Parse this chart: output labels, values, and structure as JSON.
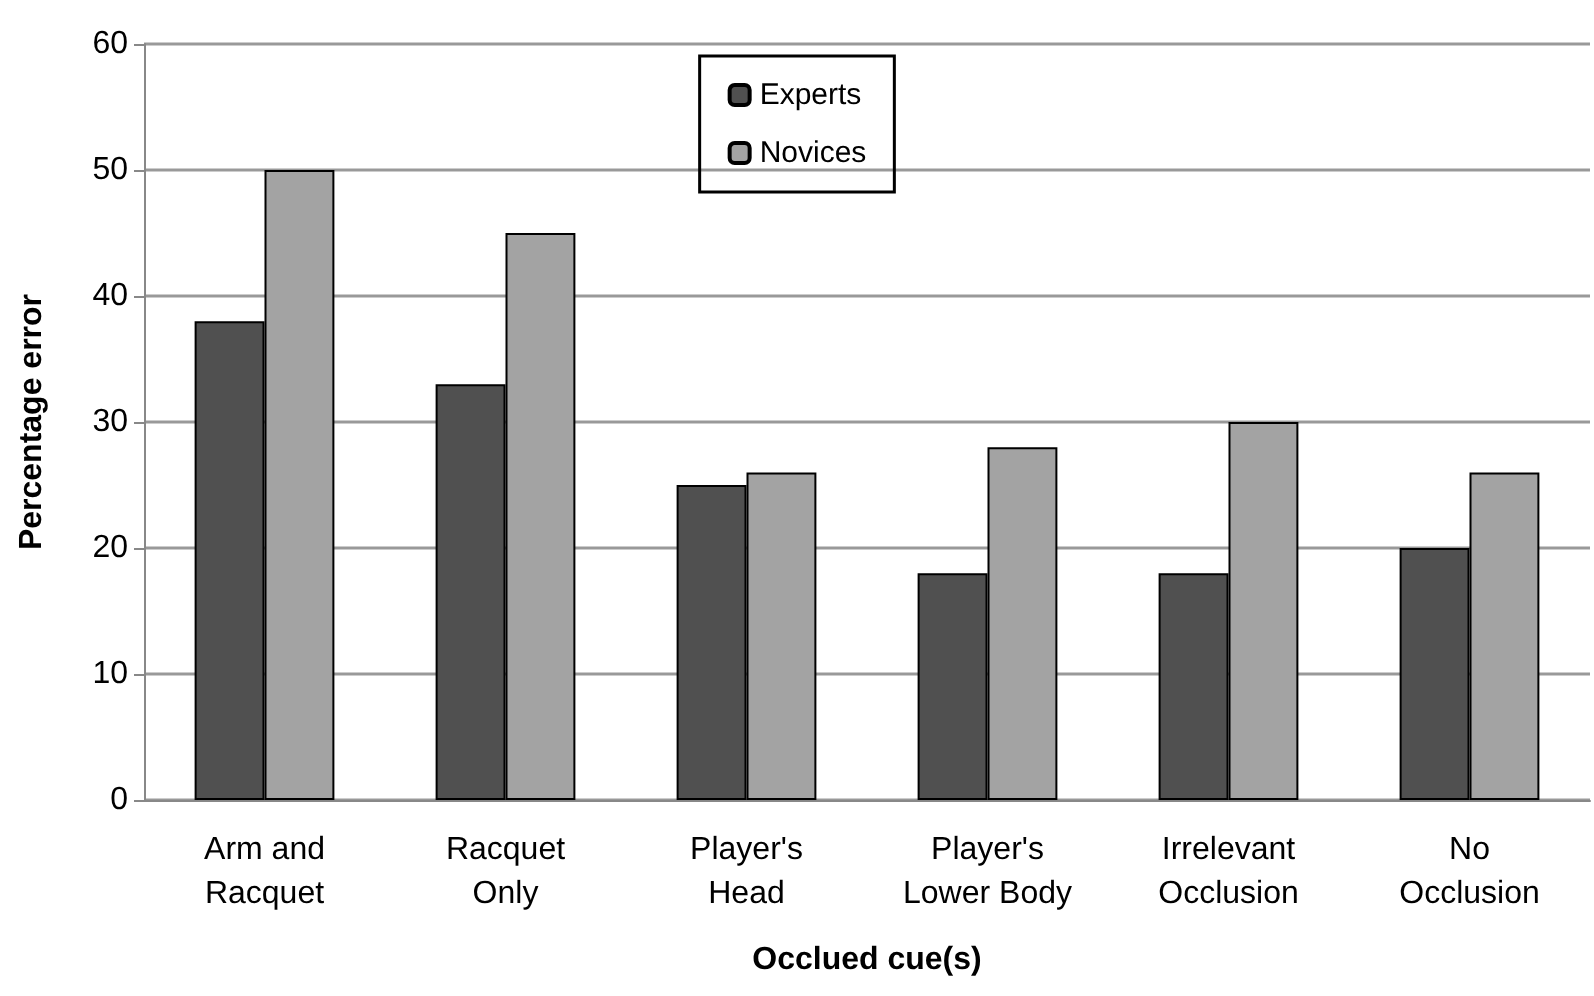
{
  "chart_data": {
    "type": "bar",
    "xlabel": "Occlued cue(s)",
    "ylabel": "Percentage error",
    "categories": [
      "Arm and\nRacquet",
      "Racquet\nOnly",
      "Player's\nHead",
      "Player's\nLower Body",
      "Irrelevant\nOcclusion",
      "No\nOcclusion"
    ],
    "series": [
      {
        "name": "Experts",
        "color": "#505050",
        "values": [
          38,
          33,
          25,
          18,
          18,
          20
        ]
      },
      {
        "name": "Novices",
        "color": "#a3a3a3",
        "values": [
          50,
          45,
          26,
          28,
          30,
          26
        ]
      }
    ],
    "ylim": [
      0,
      60
    ],
    "yticks": [
      0,
      10,
      20,
      30,
      40,
      50,
      60
    ],
    "grid": "y",
    "legend": "top"
  }
}
